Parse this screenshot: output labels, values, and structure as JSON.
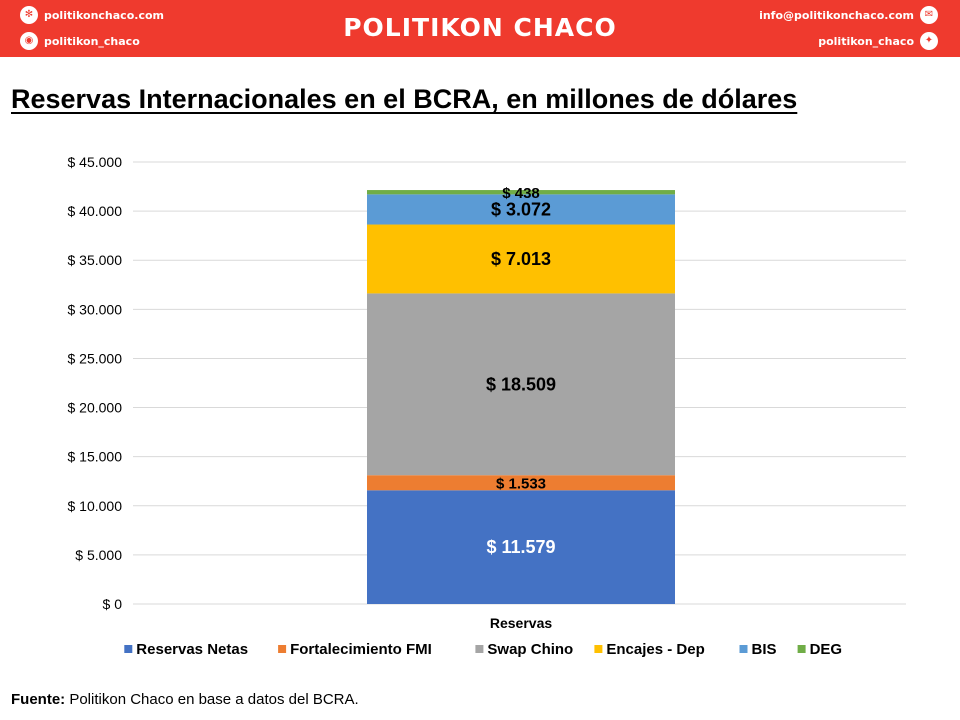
{
  "header": {
    "website": "politikonchaco.com",
    "instagram": "politikon_chaco",
    "brand": "POLITIKON CHACO",
    "email": "info@politikonchaco.com",
    "twitter": "politikon_chaco",
    "icons": [
      "dribbble-icon",
      "instagram-icon",
      "mail-icon",
      "twitter-icon"
    ]
  },
  "page_title": "Reservas Internacionales en el BCRA, en millones de dólares",
  "footer": {
    "source_label": "Fuente:",
    "source_text": " Politikon Chaco en base a datos del BCRA."
  },
  "chart_data": {
    "type": "bar",
    "stacked": true,
    "categories": [
      "Reservas"
    ],
    "series": [
      {
        "name": "Reservas Netas",
        "values": [
          11579
        ],
        "label": "$ 11.579",
        "color": "#4472c4",
        "label_color": "#ffffff"
      },
      {
        "name": "Fortalecimiento FMI",
        "values": [
          1533
        ],
        "label": "$ 1.533",
        "color": "#ed7d31",
        "label_color": "#000000"
      },
      {
        "name": "Swap Chino",
        "values": [
          18509
        ],
        "label": "$ 18.509",
        "color": "#a5a5a5",
        "label_color": "#000000"
      },
      {
        "name": "Encajes - Dep",
        "values": [
          7013
        ],
        "label": "$ 7.013",
        "color": "#ffc000",
        "label_color": "#000000"
      },
      {
        "name": "BIS",
        "values": [
          3072
        ],
        "label": "$ 3.072",
        "color": "#5b9bd5",
        "label_color": "#000000"
      },
      {
        "name": "DEG",
        "values": [
          438
        ],
        "label": "$ 438",
        "color": "#70ad47",
        "label_color": "#000000"
      }
    ],
    "yticks": [
      {
        "value": 0,
        "label": "$ 0"
      },
      {
        "value": 5000,
        "label": "$ 5.000"
      },
      {
        "value": 10000,
        "label": "$ 10.000"
      },
      {
        "value": 15000,
        "label": "$ 15.000"
      },
      {
        "value": 20000,
        "label": "$ 20.000"
      },
      {
        "value": 25000,
        "label": "$ 25.000"
      },
      {
        "value": 30000,
        "label": "$ 30.000"
      },
      {
        "value": 35000,
        "label": "$ 35.000"
      },
      {
        "value": 40000,
        "label": "$ 40.000"
      },
      {
        "value": 45000,
        "label": "$ 45.000"
      }
    ],
    "ylim": [
      0,
      45000
    ],
    "grid": true,
    "legend_position": "bottom",
    "gridline_color": "#d9d9d9"
  }
}
